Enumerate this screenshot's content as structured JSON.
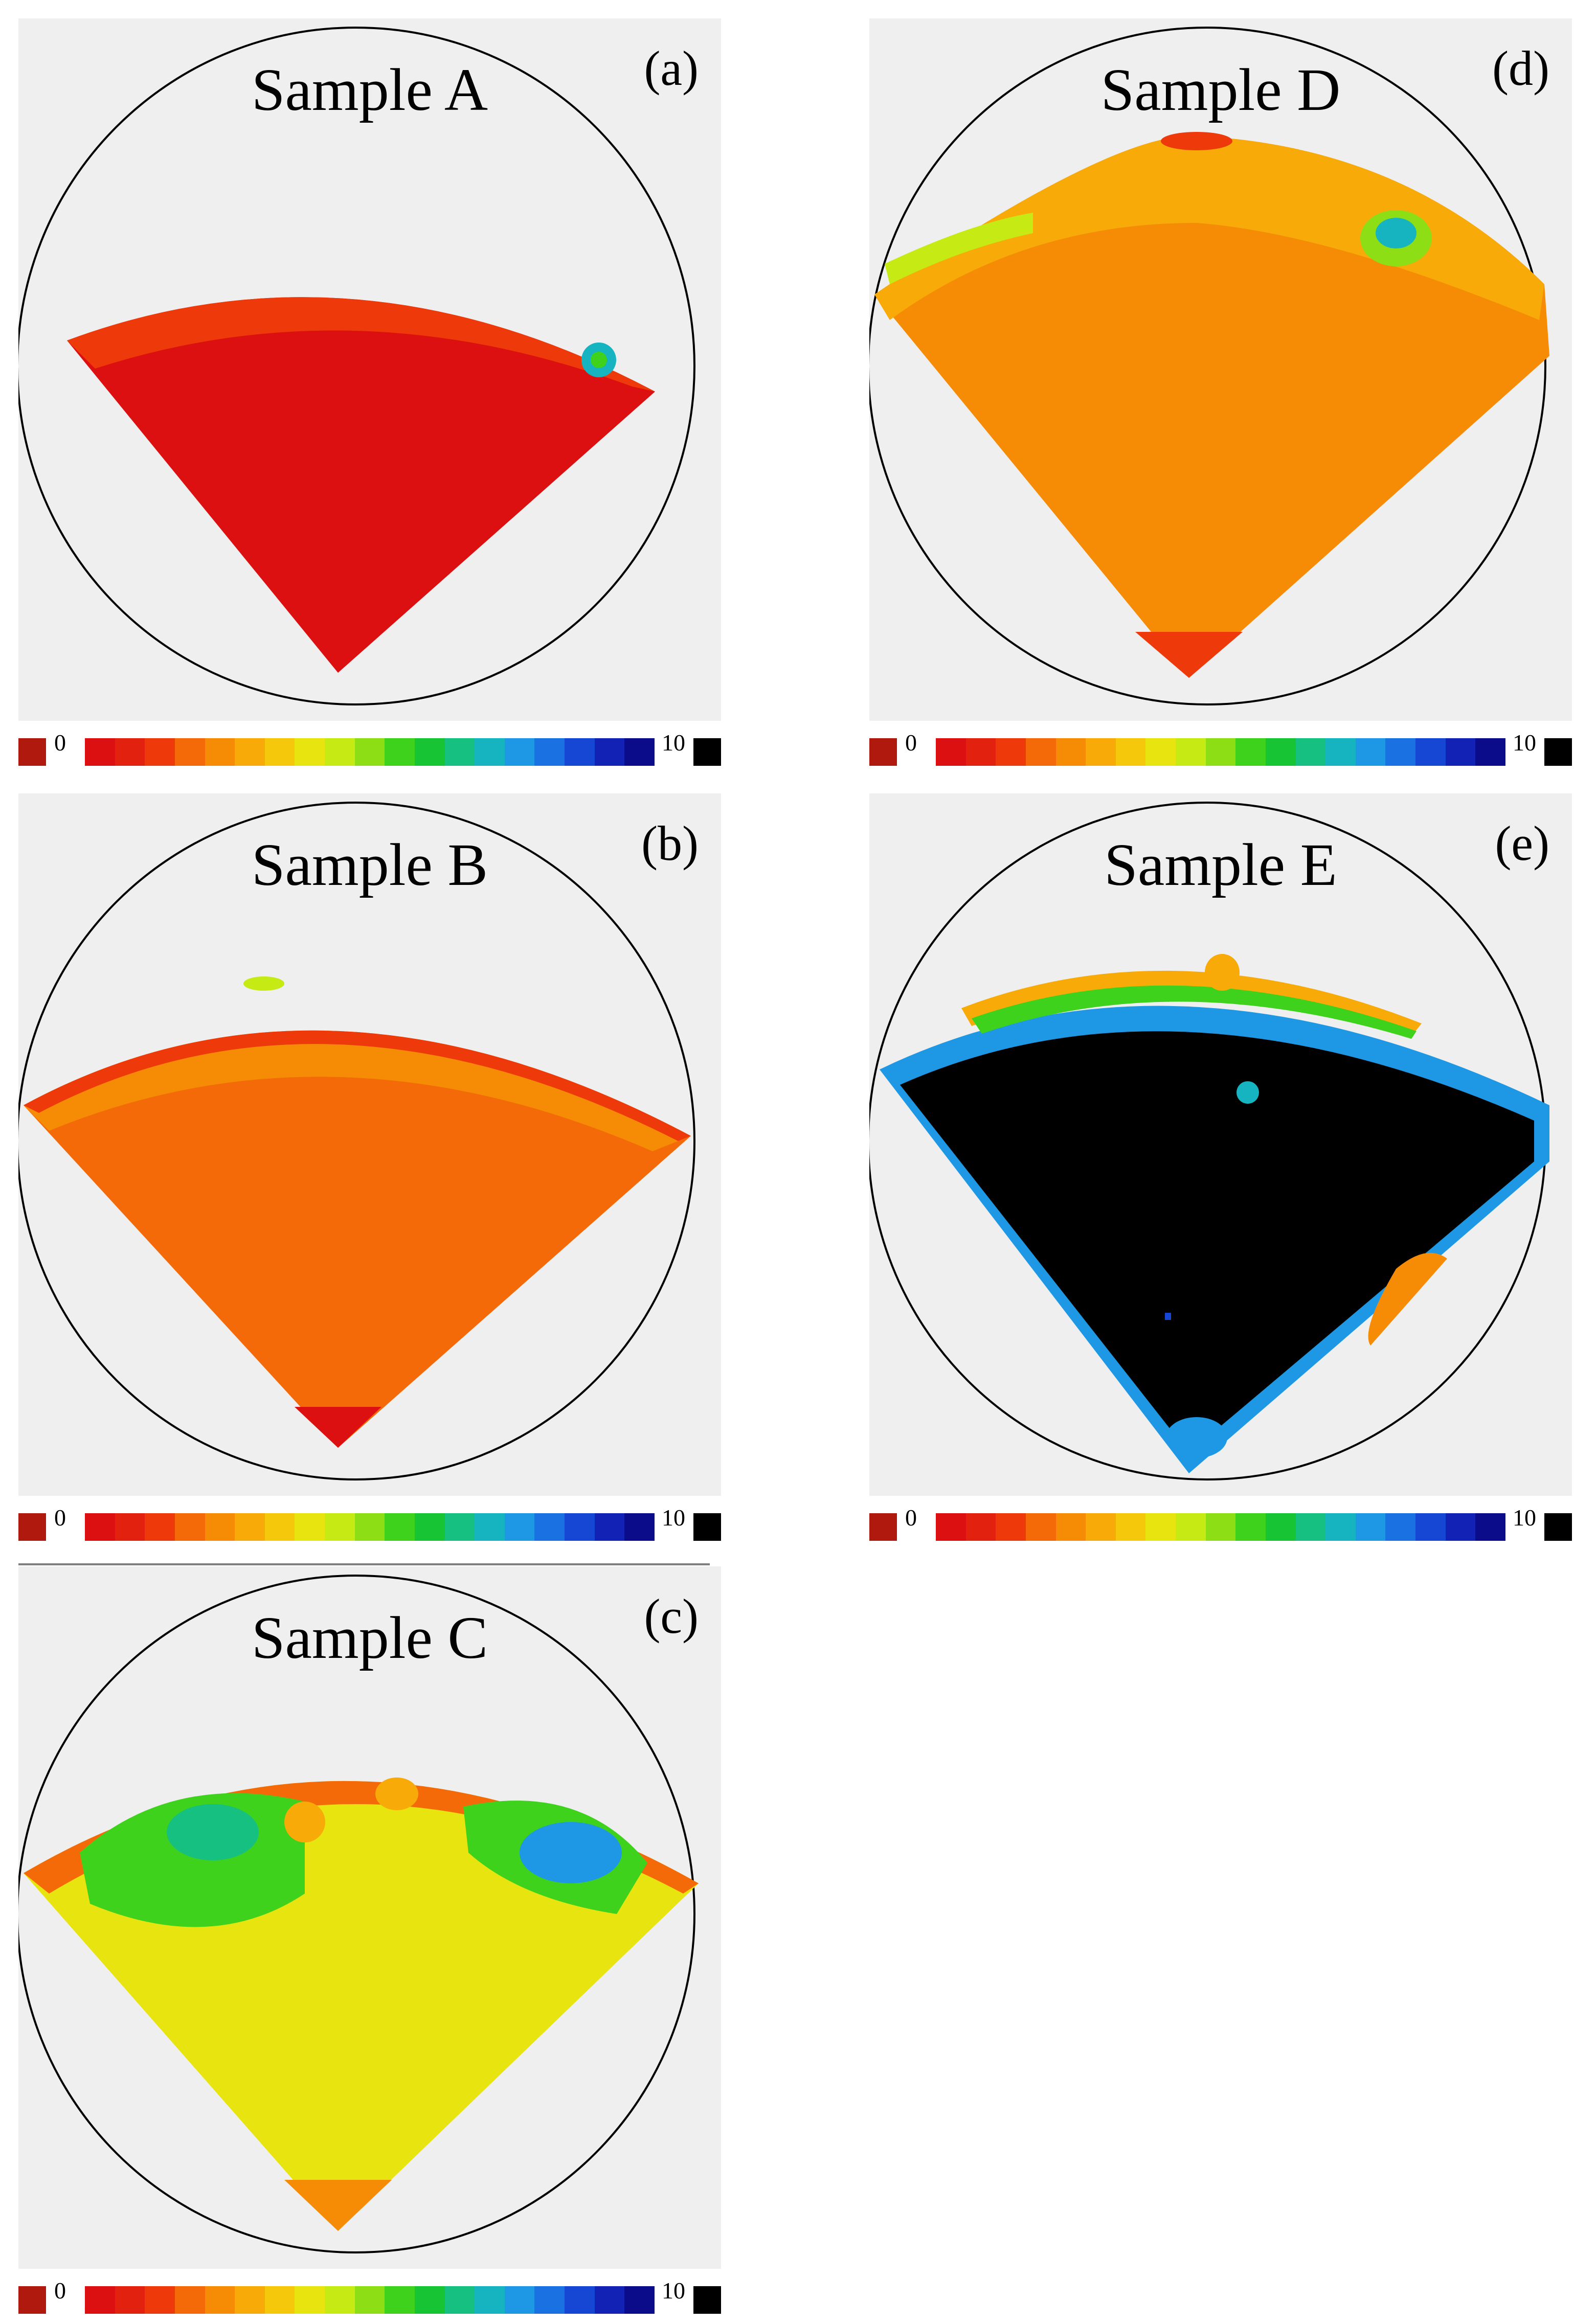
{
  "chart_data": [
    {
      "type": "heatmap",
      "panel": "(a)",
      "title": "Sample A",
      "color_scale": {
        "min_label": "0",
        "max_label": "10",
        "min": 0,
        "max": 10
      },
      "region": "fan-shaped pole-figure sector",
      "dominant_value": 0.5,
      "features": [
        {
          "location": "bulk",
          "value": 0.5
        },
        {
          "location": "upper rim band",
          "value": 1.2
        },
        {
          "location": "upper-right spot",
          "value": 6.5
        }
      ]
    },
    {
      "type": "heatmap",
      "panel": "(b)",
      "title": "Sample B",
      "color_scale": {
        "min_label": "0",
        "max_label": "10",
        "min": 0,
        "max": 10
      },
      "region": "fan-shaped pole-figure sector",
      "dominant_value": 2.0,
      "features": [
        {
          "location": "upper half",
          "value": 2.5
        },
        {
          "location": "lower half",
          "value": 1.8
        },
        {
          "location": "top edge spot",
          "value": 4.5
        }
      ]
    },
    {
      "type": "heatmap",
      "panel": "(c)",
      "title": "Sample C",
      "color_scale": {
        "min_label": "0",
        "max_label": "10",
        "min": 0,
        "max": 10
      },
      "region": "fan-shaped pole-figure sector",
      "dominant_value": 4.0,
      "features": [
        {
          "location": "left lobe",
          "value": 6.5
        },
        {
          "location": "right lobe",
          "value": 7.5
        },
        {
          "location": "rim",
          "value": 1.5
        },
        {
          "location": "lower body",
          "value": 4.0
        }
      ]
    },
    {
      "type": "heatmap",
      "panel": "(d)",
      "title": "Sample D",
      "color_scale": {
        "min_label": "0",
        "max_label": "10",
        "min": 0,
        "max": 10
      },
      "region": "fan-shaped pole-figure sector",
      "dominant_value": 2.8,
      "features": [
        {
          "location": "upper band",
          "value": 3.8
        },
        {
          "location": "upper-right spot",
          "value": 6.8
        },
        {
          "location": "bottom tip",
          "value": 1.2
        }
      ]
    },
    {
      "type": "heatmap",
      "panel": "(e)",
      "title": "Sample E",
      "color_scale": {
        "min_label": "0",
        "max_label": "10",
        "min": 0,
        "max": 10
      },
      "region": "fan-shaped pole-figure sector",
      "dominant_value": 10,
      "features": [
        {
          "location": "bulk",
          "value": 10
        },
        {
          "location": "top rim",
          "value": 3.0
        },
        {
          "location": "left edge",
          "value": 8.0
        },
        {
          "location": "lower-right streak",
          "value": 1.5
        },
        {
          "location": "bottom tip",
          "value": 8.5
        }
      ]
    }
  ],
  "panels": {
    "a": {
      "title": "Sample A",
      "letter": "(a)",
      "min_label": "0",
      "max_label": "10"
    },
    "b": {
      "title": "Sample B",
      "letter": "(b)",
      "min_label": "0",
      "max_label": "10"
    },
    "c": {
      "title": "Sample C",
      "letter": "(c)",
      "min_label": "0",
      "max_label": "10"
    },
    "d": {
      "title": "Sample D",
      "letter": "(d)",
      "min_label": "0",
      "max_label": "10"
    },
    "e": {
      "title": "Sample E",
      "letter": "(e)",
      "min_label": "0",
      "max_label": "10"
    }
  },
  "colors": {
    "panel_bg": "#efefef",
    "min_swatch": "#b01a0e",
    "max_swatch": "#000000",
    "scale": [
      "#dc1010",
      "#e2220e",
      "#ee3a0a",
      "#f46a08",
      "#f68b06",
      "#f8aa08",
      "#f6c80c",
      "#e8e410",
      "#c6ea14",
      "#8ede16",
      "#3ed21c",
      "#16c434",
      "#16c080",
      "#16b4c0",
      "#1e98e4",
      "#1a72e2",
      "#1646d4",
      "#1222b4",
      "#0a0c8a"
    ]
  }
}
